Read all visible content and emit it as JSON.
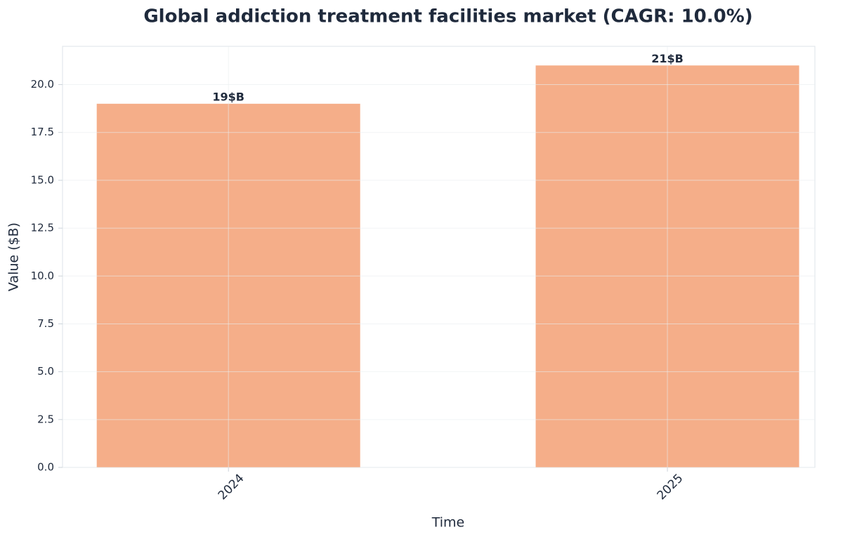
{
  "chart_data": {
    "type": "bar",
    "title": "Global addiction treatment facilities market (CAGR: 10.0%)",
    "x_label": "Time",
    "y_label": "Value ($B)",
    "categories": [
      "2024",
      "2025"
    ],
    "values": [
      19,
      21
    ],
    "value_labels": [
      "19$B",
      "21$B"
    ],
    "color": "#f5ae89",
    "ylim": [
      0,
      22
    ],
    "yticks": [
      {
        "value": 0,
        "label": "0.0"
      },
      2.5,
      {
        "value": 5,
        "label": "5.0"
      },
      7.5,
      {
        "value": 10,
        "label": "10.0"
      },
      12.5,
      {
        "value": 15,
        "label": "15.0"
      },
      17.5,
      {
        "value": 20,
        "label": "20.0"
      }
    ],
    "grid": true
  }
}
